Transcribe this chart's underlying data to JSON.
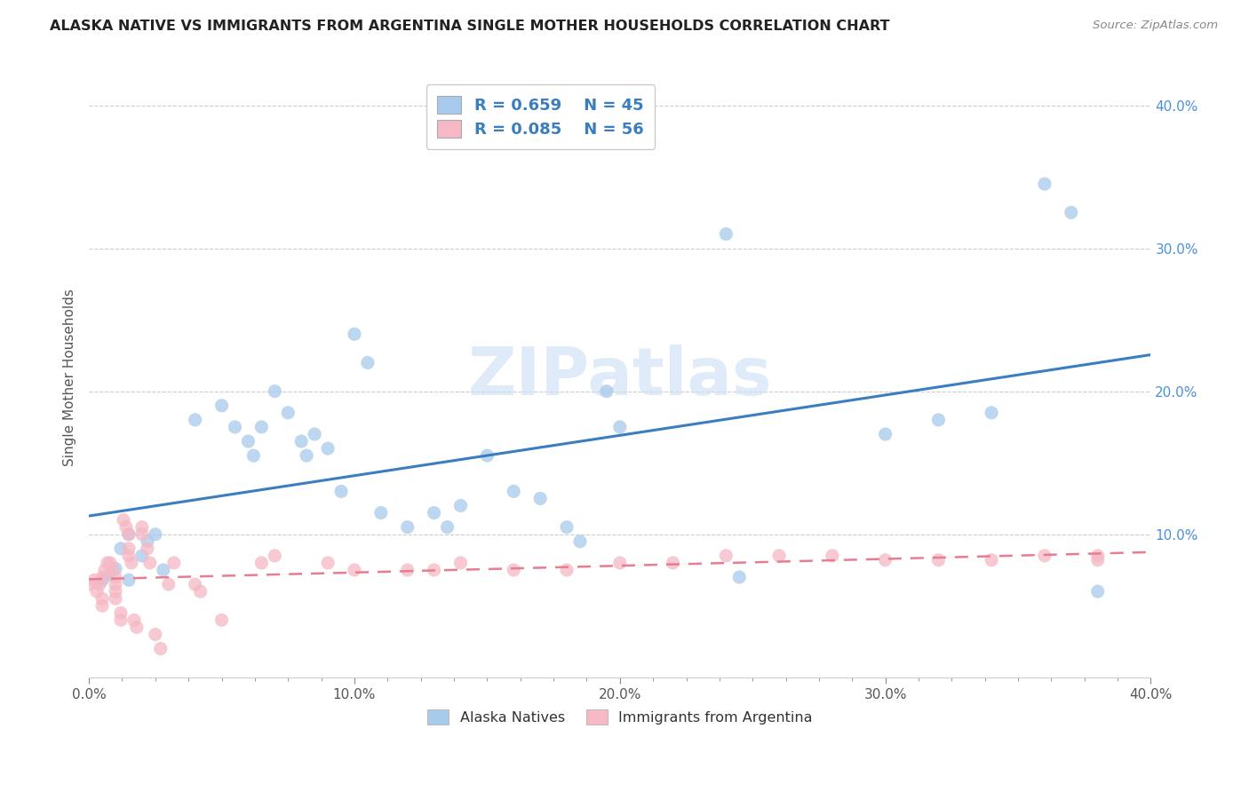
{
  "title": "ALASKA NATIVE VS IMMIGRANTS FROM ARGENTINA SINGLE MOTHER HOUSEHOLDS CORRELATION CHART",
  "source": "Source: ZipAtlas.com",
  "ylabel": "Single Mother Households",
  "xlim": [
    0.0,
    0.4
  ],
  "ylim": [
    0.0,
    0.42
  ],
  "xtick_labels": [
    "0.0%",
    "",
    "",
    "",
    "",
    "",
    "",
    "",
    "10.0%",
    "",
    "",
    "",
    "",
    "",
    "",
    "",
    "20.0%",
    "",
    "",
    "",
    "",
    "",
    "",
    "",
    "30.0%",
    "",
    "",
    "",
    "",
    "",
    "",
    "",
    "40.0%"
  ],
  "xtick_values": [
    0.0,
    0.0125,
    0.025,
    0.0375,
    0.05,
    0.0625,
    0.075,
    0.0875,
    0.1,
    0.1125,
    0.125,
    0.1375,
    0.15,
    0.1625,
    0.175,
    0.1875,
    0.2,
    0.2125,
    0.225,
    0.2375,
    0.25,
    0.2625,
    0.275,
    0.2875,
    0.3,
    0.3125,
    0.325,
    0.3375,
    0.35,
    0.3625,
    0.375,
    0.3875,
    0.4
  ],
  "ytick_labels": [
    "10.0%",
    "20.0%",
    "30.0%",
    "40.0%"
  ],
  "ytick_values": [
    0.1,
    0.2,
    0.3,
    0.4
  ],
  "watermark": "ZIPatlas",
  "legend_label1": "Alaska Natives",
  "legend_label2": "Immigrants from Argentina",
  "blue_color": "#a8caeb",
  "pink_color": "#f5b8c4",
  "blue_line_color": "#3a7ebf",
  "pink_line_color": "#e87d8f",
  "tick_color_x": "#888888",
  "tick_color_y": "#4a90d9",
  "grid_color": "#cccccc",
  "blue_scatter": [
    [
      0.005,
      0.068
    ],
    [
      0.008,
      0.072
    ],
    [
      0.01,
      0.076
    ],
    [
      0.012,
      0.09
    ],
    [
      0.015,
      0.1
    ],
    [
      0.015,
      0.068
    ],
    [
      0.02,
      0.085
    ],
    [
      0.022,
      0.095
    ],
    [
      0.025,
      0.1
    ],
    [
      0.028,
      0.075
    ],
    [
      0.04,
      0.18
    ],
    [
      0.05,
      0.19
    ],
    [
      0.055,
      0.175
    ],
    [
      0.06,
      0.165
    ],
    [
      0.062,
      0.155
    ],
    [
      0.065,
      0.175
    ],
    [
      0.07,
      0.2
    ],
    [
      0.075,
      0.185
    ],
    [
      0.08,
      0.165
    ],
    [
      0.082,
      0.155
    ],
    [
      0.085,
      0.17
    ],
    [
      0.09,
      0.16
    ],
    [
      0.095,
      0.13
    ],
    [
      0.1,
      0.24
    ],
    [
      0.105,
      0.22
    ],
    [
      0.11,
      0.115
    ],
    [
      0.12,
      0.105
    ],
    [
      0.13,
      0.115
    ],
    [
      0.135,
      0.105
    ],
    [
      0.14,
      0.12
    ],
    [
      0.15,
      0.155
    ],
    [
      0.16,
      0.13
    ],
    [
      0.17,
      0.125
    ],
    [
      0.18,
      0.105
    ],
    [
      0.185,
      0.095
    ],
    [
      0.195,
      0.2
    ],
    [
      0.2,
      0.175
    ],
    [
      0.24,
      0.31
    ],
    [
      0.245,
      0.07
    ],
    [
      0.3,
      0.17
    ],
    [
      0.32,
      0.18
    ],
    [
      0.34,
      0.185
    ],
    [
      0.36,
      0.345
    ],
    [
      0.37,
      0.325
    ],
    [
      0.38,
      0.06
    ]
  ],
  "pink_scatter": [
    [
      0.0,
      0.065
    ],
    [
      0.002,
      0.068
    ],
    [
      0.003,
      0.06
    ],
    [
      0.004,
      0.065
    ],
    [
      0.005,
      0.07
    ],
    [
      0.005,
      0.055
    ],
    [
      0.005,
      0.05
    ],
    [
      0.006,
      0.075
    ],
    [
      0.007,
      0.08
    ],
    [
      0.008,
      0.08
    ],
    [
      0.009,
      0.075
    ],
    [
      0.01,
      0.07
    ],
    [
      0.01,
      0.065
    ],
    [
      0.01,
      0.06
    ],
    [
      0.01,
      0.055
    ],
    [
      0.012,
      0.045
    ],
    [
      0.012,
      0.04
    ],
    [
      0.013,
      0.11
    ],
    [
      0.014,
      0.105
    ],
    [
      0.015,
      0.1
    ],
    [
      0.015,
      0.09
    ],
    [
      0.015,
      0.085
    ],
    [
      0.016,
      0.08
    ],
    [
      0.017,
      0.04
    ],
    [
      0.018,
      0.035
    ],
    [
      0.02,
      0.105
    ],
    [
      0.02,
      0.1
    ],
    [
      0.022,
      0.09
    ],
    [
      0.023,
      0.08
    ],
    [
      0.025,
      0.03
    ],
    [
      0.027,
      0.02
    ],
    [
      0.03,
      0.065
    ],
    [
      0.032,
      0.08
    ],
    [
      0.04,
      0.065
    ],
    [
      0.042,
      0.06
    ],
    [
      0.05,
      0.04
    ],
    [
      0.065,
      0.08
    ],
    [
      0.07,
      0.085
    ],
    [
      0.09,
      0.08
    ],
    [
      0.1,
      0.075
    ],
    [
      0.12,
      0.075
    ],
    [
      0.13,
      0.075
    ],
    [
      0.14,
      0.08
    ],
    [
      0.16,
      0.075
    ],
    [
      0.18,
      0.075
    ],
    [
      0.2,
      0.08
    ],
    [
      0.22,
      0.08
    ],
    [
      0.24,
      0.085
    ],
    [
      0.26,
      0.085
    ],
    [
      0.28,
      0.085
    ],
    [
      0.3,
      0.082
    ],
    [
      0.32,
      0.082
    ],
    [
      0.34,
      0.082
    ],
    [
      0.36,
      0.085
    ],
    [
      0.38,
      0.085
    ],
    [
      0.38,
      0.082
    ]
  ]
}
